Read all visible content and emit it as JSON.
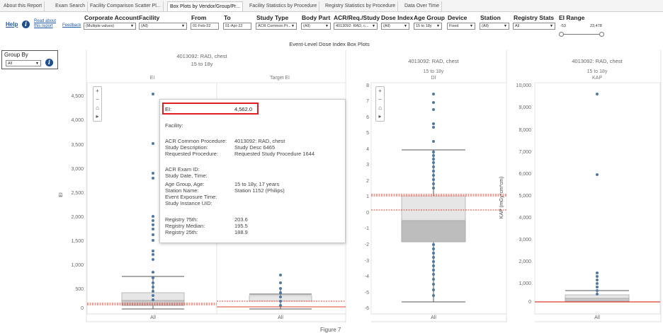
{
  "tabs": [
    {
      "label": "About this Report",
      "active": false
    },
    {
      "label": "Exam Search",
      "active": false
    },
    {
      "label": "Facility Comparison Scatter Pl...",
      "active": false
    },
    {
      "label": "Box Plots by Vendor/Group/Pr...",
      "active": true
    },
    {
      "label": "Facility Statistics by Procedure",
      "active": false
    },
    {
      "label": "Registry Statistics by Procedure",
      "active": false
    },
    {
      "label": "Data Over Time",
      "active": false
    }
  ],
  "help": {
    "label": "Help",
    "read_about": "Read about this report",
    "feedback": "Feedback"
  },
  "filters": {
    "corporate_account": {
      "label": "Corporate Account",
      "value": "(Multiple values)"
    },
    "facility": {
      "label": "Facility",
      "value": "(All)"
    },
    "from": {
      "label": "From",
      "value": "01-Feb-22"
    },
    "to": {
      "label": "To",
      "value": "01-Apr-22"
    },
    "study_type": {
      "label": "Study Type",
      "value": "ACR Common Pr..."
    },
    "body_part": {
      "label": "Body Part",
      "value": "(All)"
    },
    "acr_req_study": {
      "label": "ACR/Req./Study",
      "value": "4013092: RAD, c..."
    },
    "dose_index": {
      "label": "Dose Index",
      "value": "(All)"
    },
    "age_group": {
      "label": "Age Group",
      "value": "15 to 18y"
    },
    "device": {
      "label": "Device",
      "value": "Fixed"
    },
    "station": {
      "label": "Station",
      "value": "(All)"
    },
    "registry_stats": {
      "label": "Registry Stats",
      "value": "All"
    },
    "ei_range": {
      "label": "EI Range",
      "min": "-53",
      "max": "23,478"
    }
  },
  "group_by": {
    "label": "Group By",
    "value": "All"
  },
  "dashboard_title": "Event-Level Dose Index Box Plots",
  "panels": {
    "ei": {
      "header": "4013092: RAD, chest",
      "subheader": "15 to 18y",
      "col1": "EI",
      "col2": "Target EI",
      "ylabel": "EI",
      "yticks": [
        "4,500",
        "4,000",
        "3,500",
        "3,000",
        "2,500",
        "2,000",
        "1,500",
        "1,000",
        "500",
        "0"
      ],
      "xlabel1": "All",
      "xlabel2": "All"
    },
    "di": {
      "header": "4013092: RAD, chest",
      "subheader": "15 to 18y",
      "col": "DI",
      "yticks": [
        "8",
        "7",
        "6",
        "5",
        "4",
        "3",
        "2",
        "1",
        "0",
        "-1",
        "-2",
        "-3",
        "-4",
        "-5",
        "-6"
      ],
      "xlabel": "All"
    },
    "kap": {
      "header": "4013092: RAD, chest",
      "subheader": "15 to 18y",
      "col": "KAP",
      "ylabel": "KAP (mGy*cm*cm)",
      "yticks": [
        "10,000",
        "9,000",
        "8,000",
        "7,000",
        "6,000",
        "5,000",
        "4,000",
        "3,000",
        "2,000",
        "1,000",
        "0"
      ],
      "xlabel": "All"
    }
  },
  "tooltip": {
    "ei_label": "EI:",
    "ei_value": "4,562.0",
    "facility_label": "Facility:",
    "acr_label": "ACR Common Procedure:",
    "acr_value": "4013092: RAD, chest",
    "desc_label": "Study Description:",
    "desc_value": "Study Desc 6465",
    "req_label": "Requested Procedure:",
    "req_value": "Requested Study Procedure 1644",
    "exam_label": "ACR Exam ID:",
    "date_label": "Study Date, Time:",
    "age_label": "Age Group, Age:",
    "age_value": "15 to 18y, 17 years",
    "station_label": "Station Name:",
    "station_value": "Station 1152 (Philips)",
    "exposure_label": "Event Exposure Time:",
    "uid_label": "Study Instance UID:",
    "r75_label": "Registry 75th:",
    "r75_value": "203.6",
    "rmed_label": "Registry Median:",
    "rmed_value": "195.5",
    "r25_label": "Registry 25th:",
    "r25_value": "188.9"
  },
  "footer_text": "Figure 7",
  "colors": {
    "point": "#4e79a7",
    "registry_line": "#e03c2c",
    "box_light": "#e6e6e6",
    "box_dark": "#bdbdbd"
  }
}
